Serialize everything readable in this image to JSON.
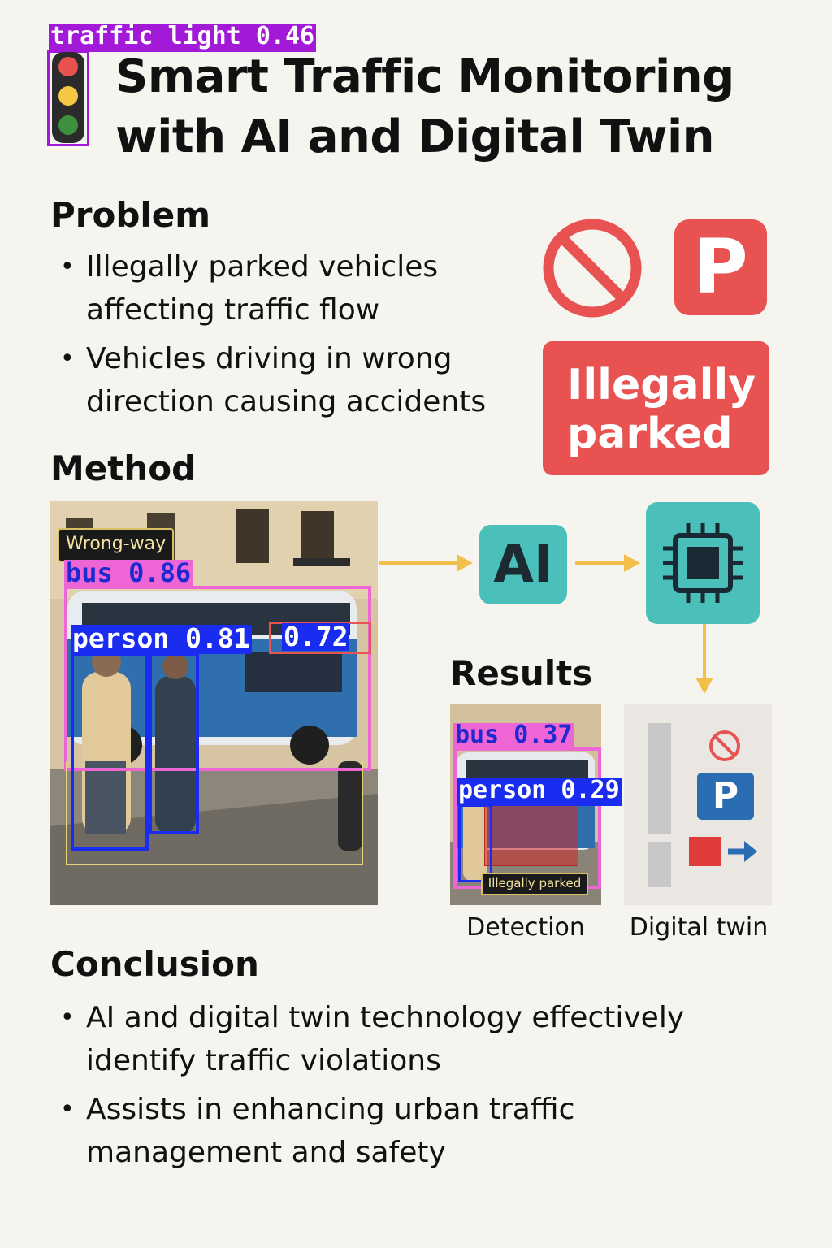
{
  "header": {
    "title_line1": "Smart Traffic Monitoring",
    "title_line2": "with AI and Digital Twin",
    "detection_tag": "traffic light 0.46"
  },
  "problem": {
    "heading": "Problem",
    "bullets": [
      {
        "line1": "Illegally parked vehicles",
        "line2": "affecting traffic flow"
      },
      {
        "line1": "Vehicles driving in wrong",
        "line2": "direction causing accidents"
      }
    ],
    "parking_letter": "P",
    "badge_line1": "Illegally",
    "badge_line2": "parked"
  },
  "method": {
    "heading": "Method",
    "photo": {
      "wrongway_label": "Wrong-way",
      "bus_tag": "bus 0.86",
      "person_tag": "person 0.81",
      "extra_tag": "0.72"
    },
    "ai_label": "AI"
  },
  "results": {
    "heading": "Results",
    "detection": {
      "bus_tag": "bus 0.37",
      "person_tag": "person 0.29",
      "parked_label": "Illegally parked",
      "caption": "Detection"
    },
    "twin": {
      "parking_letter": "P",
      "caption": "Digital twin"
    }
  },
  "conclusion": {
    "heading": "Conclusion",
    "bullets": [
      {
        "line1": "AI and digital twin technology effectively",
        "line2": "identify traffic violations"
      },
      {
        "line1": "Assists in enhancing urban traffic",
        "line2": "management and safety"
      }
    ]
  },
  "colors": {
    "accent_red": "#e85250",
    "teal": "#4bbfb9",
    "arrow": "#f2c04a",
    "det_purple": "#a21ad8",
    "det_pink": "#ee66d6",
    "det_blue": "#1a2cf0",
    "twin_blue": "#2a6db2"
  }
}
